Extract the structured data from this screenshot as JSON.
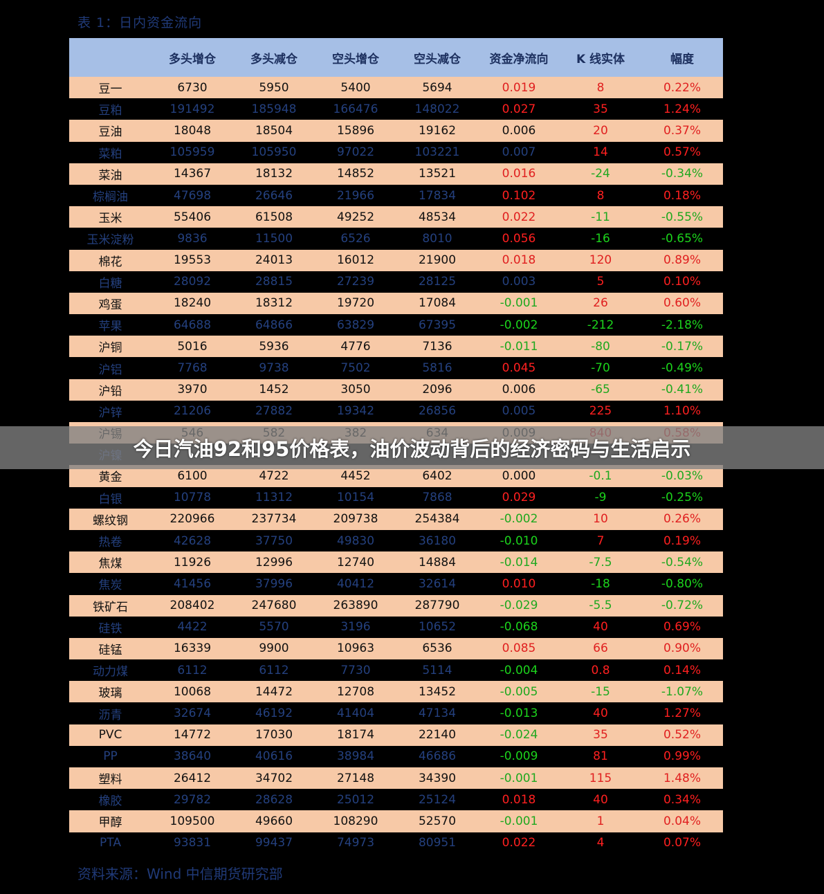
{
  "title": "表 1：日内资金流向",
  "banner": "今日汽油92和95价格表，油价波动背后的经济密码与生活启示",
  "source": "资料来源：Wind  中信期货研究部",
  "headers": [
    "",
    "多头增仓",
    "多头减仓",
    "空头增仓",
    "空头减仓",
    "资金净流向",
    "K 线实体",
    "幅度"
  ],
  "rows": [
    [
      "豆一",
      "6730",
      "5950",
      "5400",
      "5694",
      "0.019",
      "8",
      "0.22%"
    ],
    [
      "豆粕",
      "191492",
      "185948",
      "166476",
      "148022",
      "0.027",
      "35",
      "1.24%"
    ],
    [
      "豆油",
      "18048",
      "18504",
      "15896",
      "19162",
      "0.006",
      "20",
      "0.37%"
    ],
    [
      "菜粕",
      "105959",
      "105950",
      "97022",
      "103221",
      "0.007",
      "14",
      "0.57%"
    ],
    [
      "菜油",
      "14367",
      "18132",
      "14852",
      "13521",
      "0.016",
      "-24",
      "-0.34%"
    ],
    [
      "棕榈油",
      "47698",
      "26646",
      "21966",
      "17834",
      "0.102",
      "8",
      "0.18%"
    ],
    [
      "玉米",
      "55406",
      "61508",
      "49252",
      "48534",
      "0.022",
      "-11",
      "-0.55%"
    ],
    [
      "玉米淀粉",
      "9836",
      "11500",
      "6526",
      "8010",
      "0.056",
      "-16",
      "-0.65%"
    ],
    [
      "棉花",
      "19553",
      "24013",
      "16012",
      "21900",
      "0.018",
      "120",
      "0.89%"
    ],
    [
      "白糖",
      "28092",
      "28815",
      "27239",
      "28125",
      "0.003",
      "5",
      "0.10%"
    ],
    [
      "鸡蛋",
      "18240",
      "18312",
      "19720",
      "17084",
      "-0.001",
      "26",
      "0.60%"
    ],
    [
      "苹果",
      "64688",
      "64866",
      "63829",
      "67395",
      "-0.002",
      "-212",
      "-2.18%"
    ],
    [
      "沪铜",
      "5016",
      "5936",
      "4776",
      "7136",
      "-0.011",
      "-80",
      "-0.17%"
    ],
    [
      "沪铝",
      "7768",
      "9738",
      "7502",
      "5816",
      "0.045",
      "-70",
      "-0.49%"
    ],
    [
      "沪铅",
      "3970",
      "1452",
      "3050",
      "2096",
      "0.006",
      "-65",
      "-0.41%"
    ],
    [
      "沪锌",
      "21206",
      "27882",
      "19342",
      "26856",
      "0.005",
      "225",
      "1.10%"
    ],
    [
      "沪锡",
      "546",
      "582",
      "382",
      "634",
      "0.009",
      "840",
      "0.58%"
    ],
    [
      "沪镍",
      "",
      "",
      "",
      "",
      "",
      "",
      ""
    ],
    [
      "黄金",
      "6100",
      "4722",
      "4452",
      "6402",
      "0.000",
      "-0.1",
      "-0.03%"
    ],
    [
      "白银",
      "10778",
      "11312",
      "10154",
      "7868",
      "0.029",
      "-9",
      "-0.25%"
    ],
    [
      "螺纹钢",
      "220966",
      "237734",
      "209738",
      "254384",
      "-0.002",
      "10",
      "0.26%"
    ],
    [
      "热卷",
      "42628",
      "37750",
      "49830",
      "36180",
      "-0.010",
      "7",
      "0.19%"
    ],
    [
      "焦煤",
      "11926",
      "12996",
      "12740",
      "14884",
      "-0.014",
      "-7.5",
      "-0.54%"
    ],
    [
      "焦炭",
      "41456",
      "37996",
      "40412",
      "32614",
      "0.010",
      "-18",
      "-0.80%"
    ],
    [
      "铁矿石",
      "208402",
      "247680",
      "263890",
      "287790",
      "-0.029",
      "-5.5",
      "-0.72%"
    ],
    [
      "硅铁",
      "4422",
      "5570",
      "3196",
      "10652",
      "-0.068",
      "40",
      "0.69%"
    ],
    [
      "硅锰",
      "16339",
      "9900",
      "10963",
      "6536",
      "0.085",
      "66",
      "0.90%"
    ],
    [
      "动力煤",
      "6112",
      "6112",
      "7730",
      "5114",
      "-0.004",
      "0.8",
      "0.14%"
    ],
    [
      "玻璃",
      "10068",
      "14472",
      "12708",
      "13452",
      "-0.005",
      "-15",
      "-1.07%"
    ],
    [
      "沥青",
      "32674",
      "46192",
      "41404",
      "47134",
      "-0.013",
      "40",
      "1.27%"
    ],
    [
      "PVC",
      "14772",
      "17030",
      "18174",
      "22140",
      "-0.024",
      "35",
      "0.52%"
    ],
    [
      "PP",
      "38640",
      "40616",
      "38984",
      "46686",
      "-0.009",
      "81",
      "0.99%"
    ],
    [
      "塑料",
      "26412",
      "34702",
      "27148",
      "34390",
      "-0.001",
      "115",
      "1.48%"
    ],
    [
      "橡胶",
      "29782",
      "28628",
      "25012",
      "25124",
      "0.018",
      "40",
      "0.34%"
    ],
    [
      "甲醇",
      "109500",
      "49660",
      "108290",
      "52570",
      "-0.001",
      "1",
      "0.04%"
    ],
    [
      "PTA",
      "93831",
      "99437",
      "74973",
      "80951",
      "0.022",
      "4",
      "0.07%"
    ]
  ],
  "colors": {
    "header_bg": "#a6bfe6",
    "odd_row_bg": "#f7c9a7",
    "even_row_bg": "#000000",
    "positive": "#e01f1f",
    "negative": "#1fa81f"
  }
}
